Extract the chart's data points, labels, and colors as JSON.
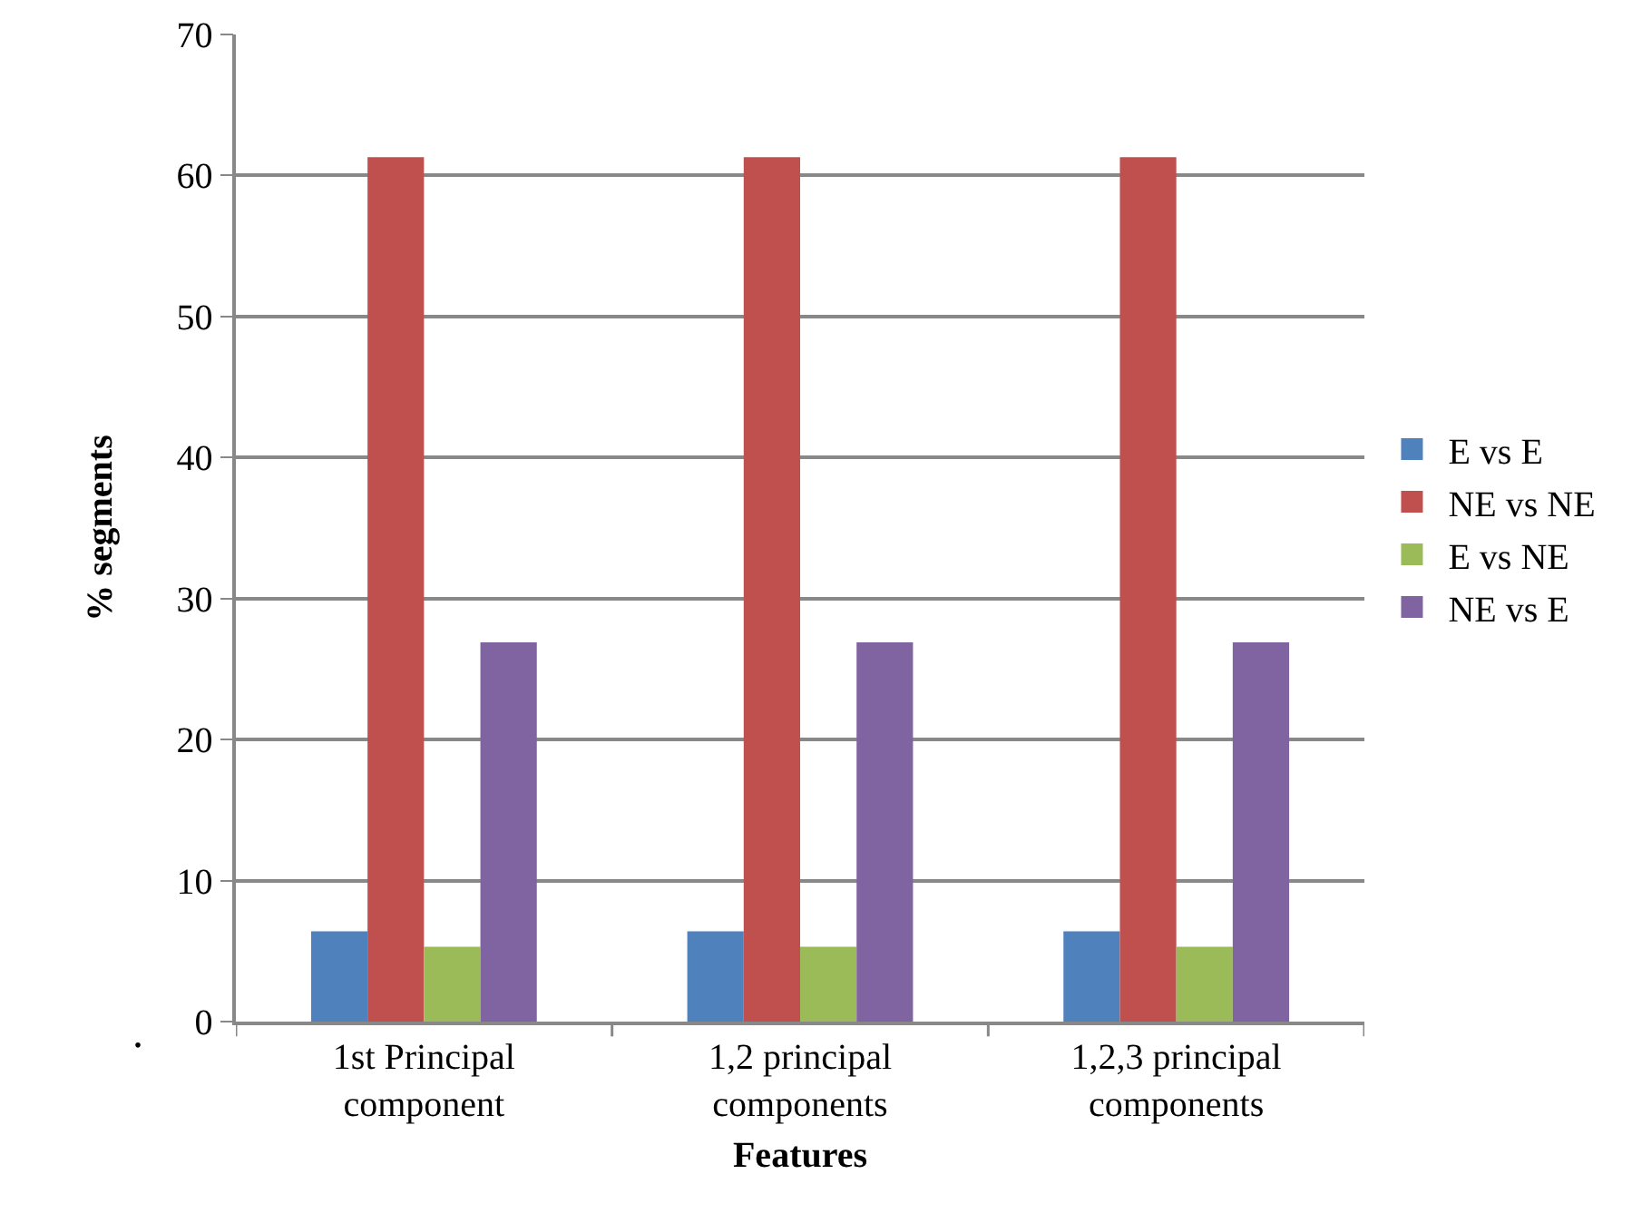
{
  "chart_data": {
    "type": "bar",
    "xlabel": "Features",
    "ylabel": "% segments",
    "categories": [
      "1st Principal component",
      "1,2 principal components",
      "1,2,3 principal components"
    ],
    "series": [
      {
        "name": "E vs E",
        "color": "#4f81bd",
        "values": [
          6.4,
          6.4,
          6.4
        ]
      },
      {
        "name": "NE vs NE",
        "color": "#c0504d",
        "values": [
          61.3,
          61.3,
          61.3
        ]
      },
      {
        "name": "E vs NE",
        "color": "#9bbb59",
        "values": [
          5.3,
          5.3,
          5.3
        ]
      },
      {
        "name": "NE vs E",
        "color": "#8064a2",
        "values": [
          26.9,
          26.9,
          26.9
        ]
      }
    ],
    "ylim": [
      0,
      70
    ],
    "yticks": [
      0,
      10,
      20,
      30,
      40,
      50,
      60,
      70
    ],
    "grid": "y",
    "legend": "right",
    "annotations": [
      "."
    ]
  }
}
